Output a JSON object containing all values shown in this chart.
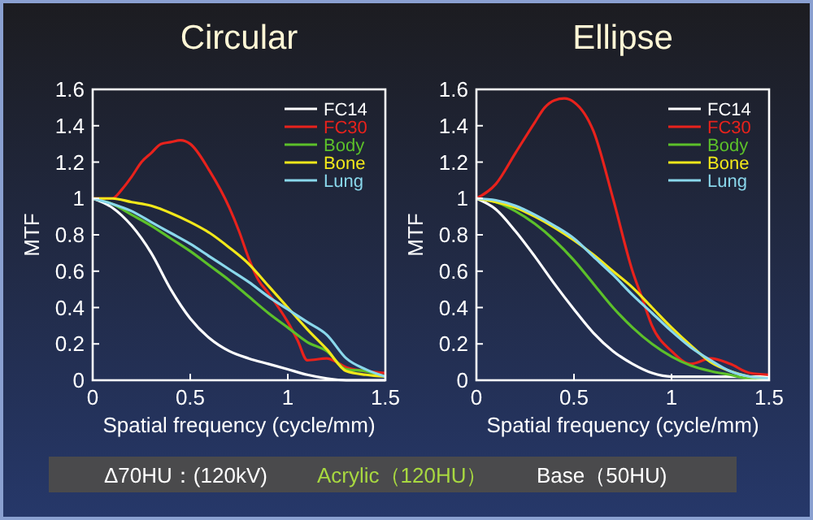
{
  "chart_data": [
    {
      "type": "line",
      "title": "Circular",
      "xlabel": "Spatial frequency (cycle/mm)",
      "ylabel": "MTF",
      "x": [
        0,
        0.1,
        0.2,
        0.3,
        0.4,
        0.5,
        0.6,
        0.7,
        0.8,
        0.9,
        1,
        1.1,
        1.2,
        1.3,
        1.4,
        1.5
      ],
      "xlim": [
        0,
        1.5
      ],
      "xticks": [
        0,
        0.5,
        1,
        1.5
      ],
      "ylim": [
        0,
        1.6
      ],
      "yticks": [
        0,
        0.2,
        0.4,
        0.6,
        0.8,
        1,
        1.2,
        1.4,
        1.6
      ],
      "grid": false,
      "legend": "top right",
      "marker": "none",
      "line_style": "solid",
      "series": [
        {
          "name": "FC14",
          "color": "#ffffff",
          "values": [
            1,
            0.95,
            0.85,
            0.7,
            0.5,
            0.34,
            0.23,
            0.16,
            0.12,
            0.09,
            0.06,
            0.03,
            0.01,
            0,
            0,
            0
          ]
        },
        {
          "name": "FC30",
          "color": "#e8221c",
          "x": [
            0,
            0.1,
            0.15,
            0.2,
            0.25,
            0.3,
            0.35,
            0.4,
            0.45,
            0.5,
            0.6,
            0.7,
            0.75,
            0.8,
            0.85,
            0.9,
            1,
            1.05,
            1.1,
            1.2,
            1.25,
            1.3,
            1.4,
            1.5
          ],
          "values": [
            1,
            1,
            1.05,
            1.12,
            1.2,
            1.25,
            1.3,
            1.31,
            1.32,
            1.3,
            1.15,
            0.95,
            0.82,
            0.67,
            0.55,
            0.48,
            0.32,
            0.22,
            0.11,
            0.12,
            0.1,
            0.07,
            0.05,
            0.04
          ]
        },
        {
          "name": "Body",
          "color": "#5cc02a",
          "values": [
            1,
            0.97,
            0.91,
            0.85,
            0.78,
            0.71,
            0.63,
            0.55,
            0.46,
            0.37,
            0.29,
            0.21,
            0.16,
            0.06,
            0.05,
            0.02
          ]
        },
        {
          "name": "Bone",
          "color": "#f2e81a",
          "values": [
            1,
            1,
            0.98,
            0.96,
            0.92,
            0.87,
            0.81,
            0.73,
            0.64,
            0.52,
            0.4,
            0.28,
            0.17,
            0.05,
            0.03,
            0.02
          ]
        },
        {
          "name": "Lung",
          "color": "#8ad8ec",
          "values": [
            1,
            0.97,
            0.93,
            0.87,
            0.81,
            0.75,
            0.68,
            0.61,
            0.54,
            0.46,
            0.39,
            0.32,
            0.25,
            0.12,
            0.06,
            0.02
          ]
        }
      ],
      "annotations": [
        "Δ70HU：(120kV)",
        "Acrylic（120HU）",
        "Base（50HU)"
      ]
    },
    {
      "type": "line",
      "title": "Ellipse",
      "xlabel": "Spatial frequency (cycle/mm)",
      "ylabel": "MTF",
      "x": [
        0,
        0.1,
        0.2,
        0.3,
        0.4,
        0.5,
        0.6,
        0.7,
        0.8,
        0.9,
        1,
        1.1,
        1.2,
        1.3,
        1.4,
        1.5
      ],
      "xlim": [
        0,
        1.5
      ],
      "xticks": [
        0,
        0.5,
        1,
        1.5
      ],
      "ylim": [
        0,
        1.6
      ],
      "yticks": [
        0,
        0.2,
        0.4,
        0.6,
        0.8,
        1,
        1.2,
        1.4,
        1.6
      ],
      "grid": false,
      "legend": "top right",
      "marker": "none",
      "line_style": "solid",
      "series": [
        {
          "name": "FC14",
          "color": "#ffffff",
          "values": [
            1,
            0.94,
            0.82,
            0.68,
            0.53,
            0.39,
            0.26,
            0.16,
            0.09,
            0.04,
            0.02,
            0.02,
            0.02,
            0.02,
            0.02,
            0.02
          ]
        },
        {
          "name": "FC30",
          "color": "#e8221c",
          "x": [
            0,
            0.1,
            0.2,
            0.3,
            0.35,
            0.4,
            0.45,
            0.5,
            0.6,
            0.7,
            0.8,
            0.85,
            0.9,
            1,
            1.1,
            1.2,
            1.3,
            1.4,
            1.5
          ],
          "values": [
            1,
            1.08,
            1.25,
            1.42,
            1.5,
            1.54,
            1.55,
            1.53,
            1.37,
            1,
            0.6,
            0.45,
            0.3,
            0.16,
            0.09,
            0.12,
            0.09,
            0.04,
            0.03
          ]
        },
        {
          "name": "Body",
          "color": "#5cc02a",
          "values": [
            1,
            0.98,
            0.93,
            0.86,
            0.77,
            0.66,
            0.53,
            0.4,
            0.29,
            0.2,
            0.13,
            0.08,
            0.05,
            0.03,
            0.01,
            0.01
          ]
        },
        {
          "name": "Bone",
          "color": "#f2e81a",
          "values": [
            1,
            0.98,
            0.95,
            0.9,
            0.84,
            0.77,
            0.69,
            0.6,
            0.51,
            0.4,
            0.29,
            0.19,
            0.1,
            0.05,
            0.02,
            0.01
          ]
        },
        {
          "name": "Lung",
          "color": "#8ad8ec",
          "values": [
            1,
            0.99,
            0.96,
            0.91,
            0.85,
            0.78,
            0.68,
            0.58,
            0.47,
            0.37,
            0.27,
            0.18,
            0.11,
            0.05,
            0.02,
            0.01
          ]
        }
      ]
    }
  ]
}
